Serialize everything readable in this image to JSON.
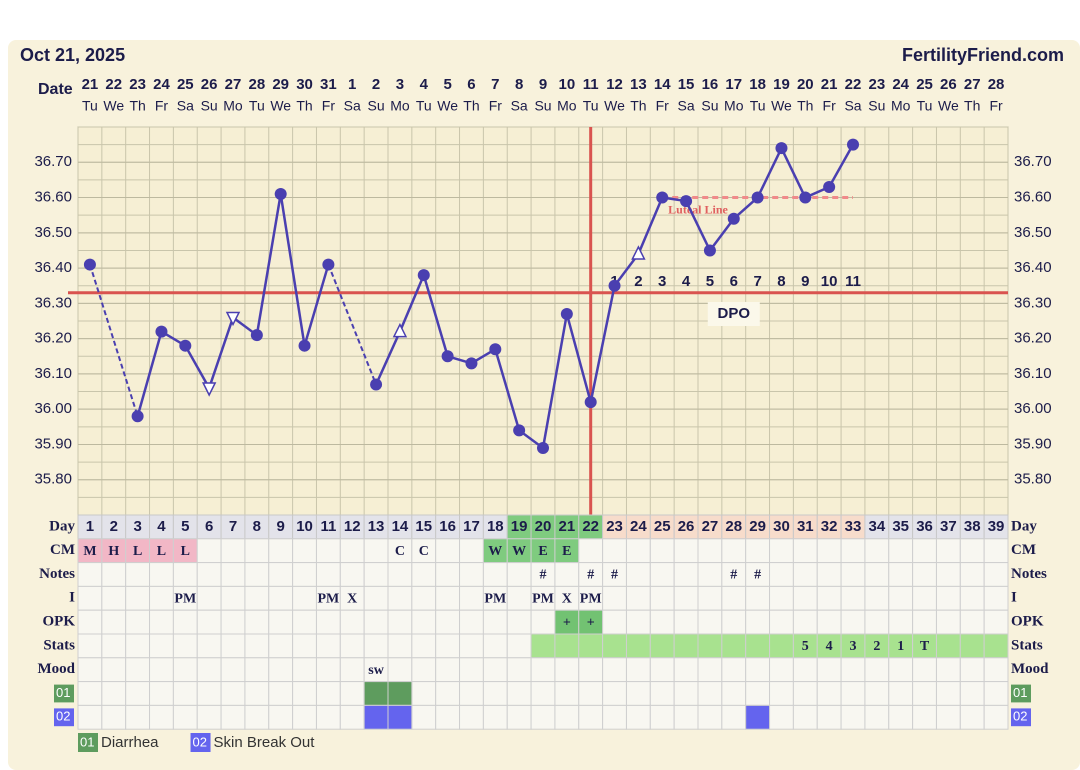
{
  "chart_data": {
    "type": "line",
    "title": "Oct 21, 2025",
    "site": "FertilityFriend.com",
    "date_label": "Date",
    "dates": [
      21,
      22,
      23,
      24,
      25,
      26,
      27,
      28,
      29,
      30,
      31,
      1,
      2,
      3,
      4,
      5,
      6,
      7,
      8,
      9,
      10,
      11,
      12,
      13,
      14,
      15,
      16,
      17,
      18,
      19,
      20,
      21,
      22,
      23,
      24,
      25,
      26,
      27,
      28
    ],
    "weekdays": [
      "Tu",
      "We",
      "Th",
      "Fr",
      "Sa",
      "Su",
      "Mo",
      "Tu",
      "We",
      "Th",
      "Fr",
      "Sa",
      "Su",
      "Mo",
      "Tu",
      "We",
      "Th",
      "Fr",
      "Sa",
      "Su",
      "Mo",
      "Tu",
      "We",
      "Th",
      "Fr",
      "Sa",
      "Su",
      "Mo",
      "Tu",
      "We",
      "Th",
      "Fr",
      "Sa",
      "Su",
      "Mo",
      "Tu",
      "We",
      "Th",
      "Fr"
    ],
    "series": [
      {
        "name": "Temperature",
        "color": "#4a3fb0",
        "values": [
          36.41,
          null,
          35.98,
          36.22,
          36.18,
          36.06,
          36.26,
          36.21,
          36.61,
          36.18,
          36.41,
          null,
          36.07,
          36.22,
          36.38,
          36.15,
          36.13,
          36.17,
          35.94,
          35.89,
          36.27,
          36.02,
          36.35,
          36.44,
          36.6,
          36.59,
          36.45,
          36.54,
          36.6,
          36.74,
          36.6,
          36.63,
          36.75,
          null,
          null,
          null,
          null,
          null,
          null
        ],
        "markers": [
          "circle",
          null,
          "circle",
          "circle",
          "circle",
          "triangle-down",
          "triangle-down",
          "circle",
          "circle",
          "circle",
          "circle",
          null,
          "circle",
          "triangle-up",
          "circle",
          "circle",
          "circle",
          "circle",
          "circle",
          "circle",
          "circle",
          "circle",
          "circle",
          "triangle-up",
          "circle",
          "circle",
          "circle",
          "circle",
          "circle",
          "circle",
          "circle",
          "circle",
          "circle",
          null,
          null,
          null,
          null,
          null,
          null
        ]
      }
    ],
    "ylim": [
      35.7,
      36.8
    ],
    "yticks": [
      {
        "value": 35.8,
        "label": "35.80"
      },
      {
        "value": 35.9,
        "label": "35.90"
      },
      {
        "value": 36.0,
        "label": "36.00"
      },
      {
        "value": 36.1,
        "label": "36.10"
      },
      {
        "value": 36.2,
        "label": "36.20"
      },
      {
        "value": 36.3,
        "label": "36.30"
      },
      {
        "value": 36.4,
        "label": "36.40"
      },
      {
        "value": 36.5,
        "label": "36.50"
      },
      {
        "value": 36.6,
        "label": "36.60"
      },
      {
        "value": 36.7,
        "label": "36.70"
      }
    ],
    "grid": true,
    "coverline": 36.33,
    "ovulation_day": 22,
    "luteal_line": {
      "label": "Luteal Line",
      "value": 36.6,
      "start_day": 25,
      "end_day": 33
    },
    "dpo_label": "DPO",
    "dpo": [
      null,
      null,
      null,
      null,
      null,
      null,
      null,
      null,
      null,
      null,
      null,
      null,
      null,
      null,
      null,
      null,
      null,
      null,
      null,
      null,
      null,
      null,
      1,
      2,
      3,
      4,
      5,
      6,
      7,
      8,
      9,
      10,
      11,
      null,
      null,
      null,
      null,
      null,
      null
    ],
    "day_label": "Day",
    "days": [
      1,
      2,
      3,
      4,
      5,
      6,
      7,
      8,
      9,
      10,
      11,
      12,
      13,
      14,
      15,
      16,
      17,
      18,
      19,
      20,
      21,
      22,
      23,
      24,
      25,
      26,
      27,
      28,
      29,
      30,
      31,
      32,
      33,
      34,
      35,
      36,
      37,
      38,
      39
    ],
    "rows": [
      {
        "label": "CM",
        "cells": [
          "M",
          "H",
          "L",
          "L",
          "L",
          null,
          null,
          null,
          null,
          null,
          null,
          null,
          null,
          "C",
          "C",
          null,
          null,
          "W",
          "W",
          "E",
          "E",
          null,
          null,
          null,
          null,
          null,
          null,
          null,
          null,
          null,
          null,
          null,
          null,
          null,
          null,
          null,
          null,
          null,
          null
        ]
      },
      {
        "label": "Notes",
        "cells": [
          null,
          null,
          null,
          null,
          null,
          null,
          null,
          null,
          null,
          null,
          null,
          null,
          null,
          null,
          null,
          null,
          null,
          null,
          null,
          "#",
          null,
          "#",
          "#",
          null,
          null,
          null,
          null,
          "#",
          "#",
          null,
          null,
          null,
          null,
          null,
          null,
          null,
          null,
          null,
          null
        ]
      },
      {
        "label": "I",
        "cells": [
          null,
          null,
          null,
          null,
          "PM",
          null,
          null,
          null,
          null,
          null,
          "PM",
          "X",
          null,
          null,
          null,
          null,
          null,
          "PM",
          null,
          "PM",
          "X",
          "PM",
          null,
          null,
          null,
          null,
          null,
          null,
          null,
          null,
          null,
          null,
          null,
          null,
          null,
          null,
          null,
          null,
          null
        ]
      },
      {
        "label": "OPK",
        "cells": [
          null,
          null,
          null,
          null,
          null,
          null,
          null,
          null,
          null,
          null,
          null,
          null,
          null,
          null,
          null,
          null,
          null,
          null,
          null,
          null,
          "+",
          "+",
          null,
          null,
          null,
          null,
          null,
          null,
          null,
          null,
          null,
          null,
          null,
          null,
          null,
          null,
          null,
          null,
          null
        ]
      },
      {
        "label": "Stats",
        "cells": [
          null,
          null,
          null,
          null,
          null,
          null,
          null,
          null,
          null,
          null,
          null,
          null,
          null,
          null,
          null,
          null,
          null,
          null,
          null,
          null,
          null,
          null,
          null,
          null,
          null,
          null,
          null,
          null,
          null,
          null,
          5,
          4,
          3,
          2,
          1,
          "T",
          null,
          null,
          null
        ]
      },
      {
        "label": "Mood",
        "cells": [
          null,
          null,
          null,
          null,
          null,
          null,
          null,
          null,
          null,
          null,
          null,
          null,
          "sw",
          null,
          null,
          null,
          null,
          null,
          null,
          null,
          null,
          null,
          null,
          null,
          null,
          null,
          null,
          null,
          null,
          null,
          null,
          null,
          null,
          null,
          null,
          null,
          null,
          null,
          null
        ]
      }
    ],
    "symptoms": [
      {
        "code": "01",
        "name": "Diarrhea",
        "color": "#5e9c5e",
        "days": [
          13,
          14
        ]
      },
      {
        "code": "02",
        "name": "Skin Break Out",
        "color": "#6464ee",
        "days": [
          13,
          14,
          29
        ]
      }
    ]
  }
}
